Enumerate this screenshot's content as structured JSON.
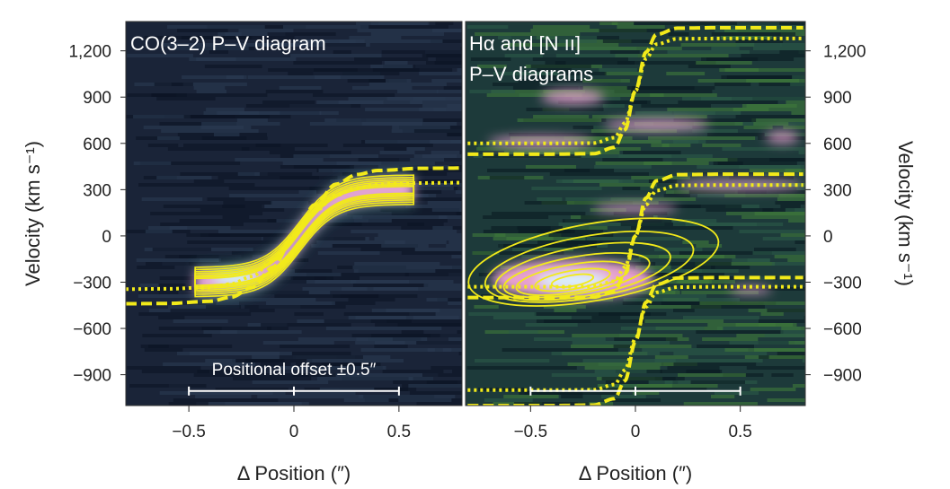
{
  "chart_data": [
    {
      "type": "heatmap",
      "panel": "left",
      "title": "CO(3–2) P–V diagram",
      "xlabel": "Δ Position (″)",
      "ylabel": "Velocity (km s⁻¹)",
      "xlim": [
        -0.8,
        0.8
      ],
      "ylim": [
        -1100,
        1390
      ],
      "xticks": [
        -0.5,
        0,
        0.5
      ],
      "xtick_labels": [
        "−0.5",
        "0",
        "0.5"
      ],
      "yticks": [
        1200,
        900,
        600,
        300,
        0,
        -300,
        -600,
        -900
      ],
      "ytick_labels": [
        "1,200",
        "900",
        "600",
        "300",
        "0",
        "−300",
        "−600",
        "−900"
      ],
      "colors": {
        "background": "#1a2438",
        "emission": "#e9a6d8",
        "peak": "#d8f4ff",
        "model": "#f2ea1a"
      },
      "scale_bar": {
        "label": "Positional offset ±0.5″",
        "range": [
          -0.5,
          0.5
        ],
        "velocity": -1000
      },
      "model_curves": [
        {
          "style": "dashed",
          "x": [
            -0.8,
            -0.6,
            -0.4,
            -0.3,
            -0.2,
            -0.1,
            0,
            0.1,
            0.2,
            0.3,
            0.4,
            0.6,
            0.8
          ],
          "y": [
            -440,
            -438,
            -424,
            -398,
            -335,
            -203,
            0,
            203,
            335,
            398,
            424,
            438,
            440
          ]
        },
        {
          "style": "dotted",
          "x": [
            -0.8,
            -0.6,
            -0.4,
            -0.3,
            -0.2,
            -0.1,
            0,
            0.1,
            0.2,
            0.3,
            0.4,
            0.6,
            0.8
          ],
          "y": [
            -345,
            -343,
            -333,
            -312,
            -263,
            -159,
            0,
            159,
            263,
            312,
            333,
            343,
            345
          ]
        }
      ],
      "contours": {
        "spine_x_range": [
          -0.47,
          0.57
        ],
        "spine_amplitude": 300,
        "half_widths": [
          95,
          80,
          66,
          54,
          42,
          32,
          22
        ]
      }
    },
    {
      "type": "heatmap",
      "panel": "right",
      "title_lines": [
        "Hα and [N ıı]",
        "P–V diagrams"
      ],
      "xlabel": "Δ Position (″)",
      "ylabel": "Velocity (km s⁻¹)",
      "xlim": [
        -0.81,
        0.81
      ],
      "ylim": [
        -1100,
        1390
      ],
      "xticks": [
        -0.5,
        0,
        0.5
      ],
      "xtick_labels": [
        "−0.5",
        "0",
        "0.5"
      ],
      "yticks": [
        1200,
        900,
        600,
        300,
        0,
        -300,
        -600,
        -900
      ],
      "ytick_labels": [
        "1,200",
        "900",
        "600",
        "300",
        "0",
        "−300",
        "−600",
        "−900"
      ],
      "colors": {
        "background": "#1d3a3a",
        "mid": "#3f7a3a",
        "emission": "#e7a0cf",
        "peak": "#d8f4ff",
        "model": "#f2ea1a"
      },
      "scale_bar": {
        "range": [
          -0.5,
          0.5
        ],
        "velocity": -1000
      },
      "model_curves": [
        {
          "style": "dashed",
          "x": [
            -0.8,
            -0.4,
            -0.2,
            -0.1,
            -0.05,
            0,
            0.05,
            0.1,
            0.2,
            0.4,
            0.8
          ],
          "y": [
            -400,
            -400,
            -397,
            -357,
            -245,
            0,
            245,
            357,
            397,
            400,
            400
          ]
        },
        {
          "style": "dotted",
          "x": [
            -0.8,
            -0.4,
            -0.2,
            -0.1,
            -0.05,
            0,
            0.05,
            0.1,
            0.2,
            0.4,
            0.8
          ],
          "y": [
            -330,
            -330,
            -328,
            -294,
            -202,
            0,
            202,
            294,
            328,
            330,
            330
          ]
        },
        {
          "style": "dashed",
          "x": [
            -0.8,
            -0.4,
            -0.2,
            -0.1,
            -0.05,
            0,
            0.05,
            0.1,
            0.2,
            0.4,
            0.8
          ],
          "y": [
            530,
            530,
            533,
            574,
            689,
            940,
            1191,
            1306,
            1347,
            1350,
            1350
          ]
        },
        {
          "style": "dotted",
          "x": [
            -0.8,
            -0.4,
            -0.2,
            -0.1,
            -0.05,
            0,
            0.05,
            0.1,
            0.2,
            0.4,
            0.8
          ],
          "y": [
            600,
            600,
            602,
            637,
            732,
            940,
            1148,
            1243,
            1278,
            1280,
            1280
          ]
        },
        {
          "style": "dashed",
          "x": [
            -0.8,
            -0.4,
            -0.2,
            -0.1,
            -0.05,
            0,
            0.05,
            0.1,
            0.2,
            0.4,
            0.8
          ],
          "y": [
            -1100,
            -1100,
            -1097,
            -1055,
            -939,
            -685,
            -431,
            -315,
            -273,
            -270,
            -270
          ]
        },
        {
          "style": "dotted",
          "x": [
            -0.8,
            -0.4,
            -0.2,
            -0.1,
            -0.05,
            0,
            0.05,
            0.1,
            0.2,
            0.4,
            0.8
          ],
          "y": [
            -1000,
            -1000,
            -998,
            -964,
            -870,
            -665,
            -460,
            -366,
            -332,
            -330,
            -330
          ]
        }
      ],
      "contours": [
        {
          "cx": -0.2,
          "cy": -170,
          "rx": 0.6,
          "ry": 250
        },
        {
          "cx": -0.22,
          "cy": -200,
          "rx": 0.5,
          "ry": 200
        },
        {
          "cx": -0.25,
          "cy": -230,
          "rx": 0.42,
          "ry": 160
        },
        {
          "cx": -0.28,
          "cy": -255,
          "rx": 0.35,
          "ry": 120
        },
        {
          "cx": -0.3,
          "cy": -275,
          "rx": 0.27,
          "ry": 90
        },
        {
          "cx": -0.3,
          "cy": -285,
          "rx": 0.18,
          "ry": 60
        },
        {
          "cx": -0.3,
          "cy": -290,
          "rx": 0.1,
          "ry": 35
        }
      ]
    }
  ]
}
